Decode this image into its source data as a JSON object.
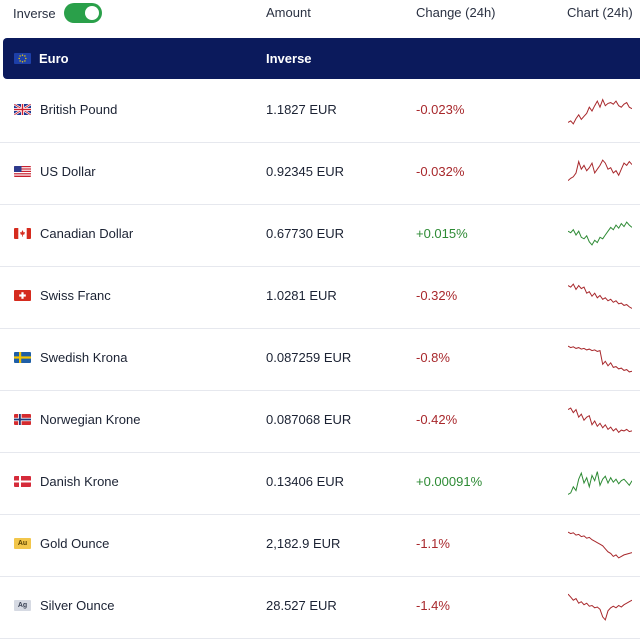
{
  "header": {
    "inverse_label": "Inverse",
    "inverse_on": true,
    "amount_label": "Amount",
    "change_label": "Change (24h)",
    "chart_label": "Chart (24h)"
  },
  "base": {
    "name": "Euro",
    "column_label": "Inverse",
    "icon": "eu-flag-icon"
  },
  "colors": {
    "negative": "#a8282c",
    "positive": "#2e8b35",
    "base_row": "#0b1a5c",
    "toggle": "#2aa04a"
  },
  "rows": [
    {
      "name": "British Pound",
      "amount": "1.1827 EUR",
      "change": "-0.023%",
      "trend": "neg",
      "icon": "uk-flag-icon",
      "spark": [
        50,
        48,
        52,
        45,
        40,
        46,
        42,
        38,
        30,
        35,
        28,
        22,
        30,
        20,
        28,
        25,
        24,
        26,
        22,
        28,
        30,
        26,
        24,
        30,
        32
      ]
    },
    {
      "name": "US Dollar",
      "amount": "0.92345 EUR",
      "change": "-0.032%",
      "trend": "neg",
      "icon": "us-flag-icon",
      "spark": [
        45,
        42,
        40,
        35,
        20,
        30,
        25,
        32,
        28,
        22,
        35,
        30,
        25,
        18,
        22,
        30,
        28,
        35,
        32,
        38,
        30,
        22,
        25,
        20,
        24
      ]
    },
    {
      "name": "Canadian Dollar",
      "amount": "0.67730 EUR",
      "change": "+0.015%",
      "trend": "pos",
      "icon": "ca-flag-icon",
      "spark": [
        30,
        32,
        28,
        35,
        30,
        38,
        40,
        36,
        44,
        48,
        42,
        45,
        38,
        40,
        35,
        30,
        25,
        28,
        22,
        26,
        20,
        24,
        18,
        22,
        25
      ]
    },
    {
      "name": "Swiss Franc",
      "amount": "1.0281 EUR",
      "change": "-0.32%",
      "trend": "neg",
      "icon": "ch-flag-icon",
      "spark": [
        20,
        22,
        18,
        25,
        20,
        24,
        22,
        30,
        28,
        34,
        30,
        36,
        33,
        38,
        36,
        40,
        38,
        42,
        40,
        44,
        43,
        46,
        45,
        48,
        50
      ]
    },
    {
      "name": "Swedish Krona",
      "amount": "0.087259 EUR",
      "change": "-0.8%",
      "trend": "neg",
      "icon": "se-flag-icon",
      "spark": [
        18,
        20,
        19,
        21,
        20,
        22,
        21,
        23,
        22,
        24,
        23,
        25,
        24,
        42,
        38,
        44,
        40,
        46,
        45,
        48,
        47,
        50,
        49,
        52,
        51
      ]
    },
    {
      "name": "Norwegian Krone",
      "amount": "0.087068 EUR",
      "change": "-0.42%",
      "trend": "neg",
      "icon": "no-flag-icon",
      "spark": [
        20,
        18,
        24,
        20,
        30,
        26,
        34,
        30,
        28,
        40,
        35,
        42,
        38,
        44,
        40,
        46,
        43,
        48,
        45,
        50,
        47,
        48,
        46,
        49,
        48
      ]
    },
    {
      "name": "Danish Krone",
      "amount": "0.13406 EUR",
      "change": "+0.00091%",
      "trend": "pos",
      "icon": "dk-flag-icon",
      "spark": [
        50,
        48,
        40,
        45,
        30,
        22,
        35,
        28,
        40,
        25,
        32,
        20,
        38,
        30,
        26,
        35,
        28,
        34,
        30,
        36,
        32,
        30,
        34,
        38,
        32
      ]
    },
    {
      "name": "Gold Ounce",
      "amount": "2,182.9 EUR",
      "change": "-1.1%",
      "trend": "neg",
      "icon": "gold-ounce-icon",
      "spark": [
        18,
        20,
        19,
        22,
        21,
        24,
        23,
        26,
        25,
        28,
        30,
        32,
        34,
        36,
        40,
        44,
        46,
        50,
        48,
        52,
        50,
        48,
        47,
        46,
        45
      ]
    },
    {
      "name": "Silver Ounce",
      "amount": "28.527 EUR",
      "change": "-1.4%",
      "trend": "neg",
      "icon": "silver-ounce-icon",
      "spark": [
        18,
        22,
        26,
        24,
        30,
        28,
        32,
        30,
        34,
        33,
        36,
        35,
        38,
        48,
        52,
        40,
        36,
        34,
        36,
        33,
        35,
        32,
        30,
        28,
        26
      ]
    }
  ]
}
